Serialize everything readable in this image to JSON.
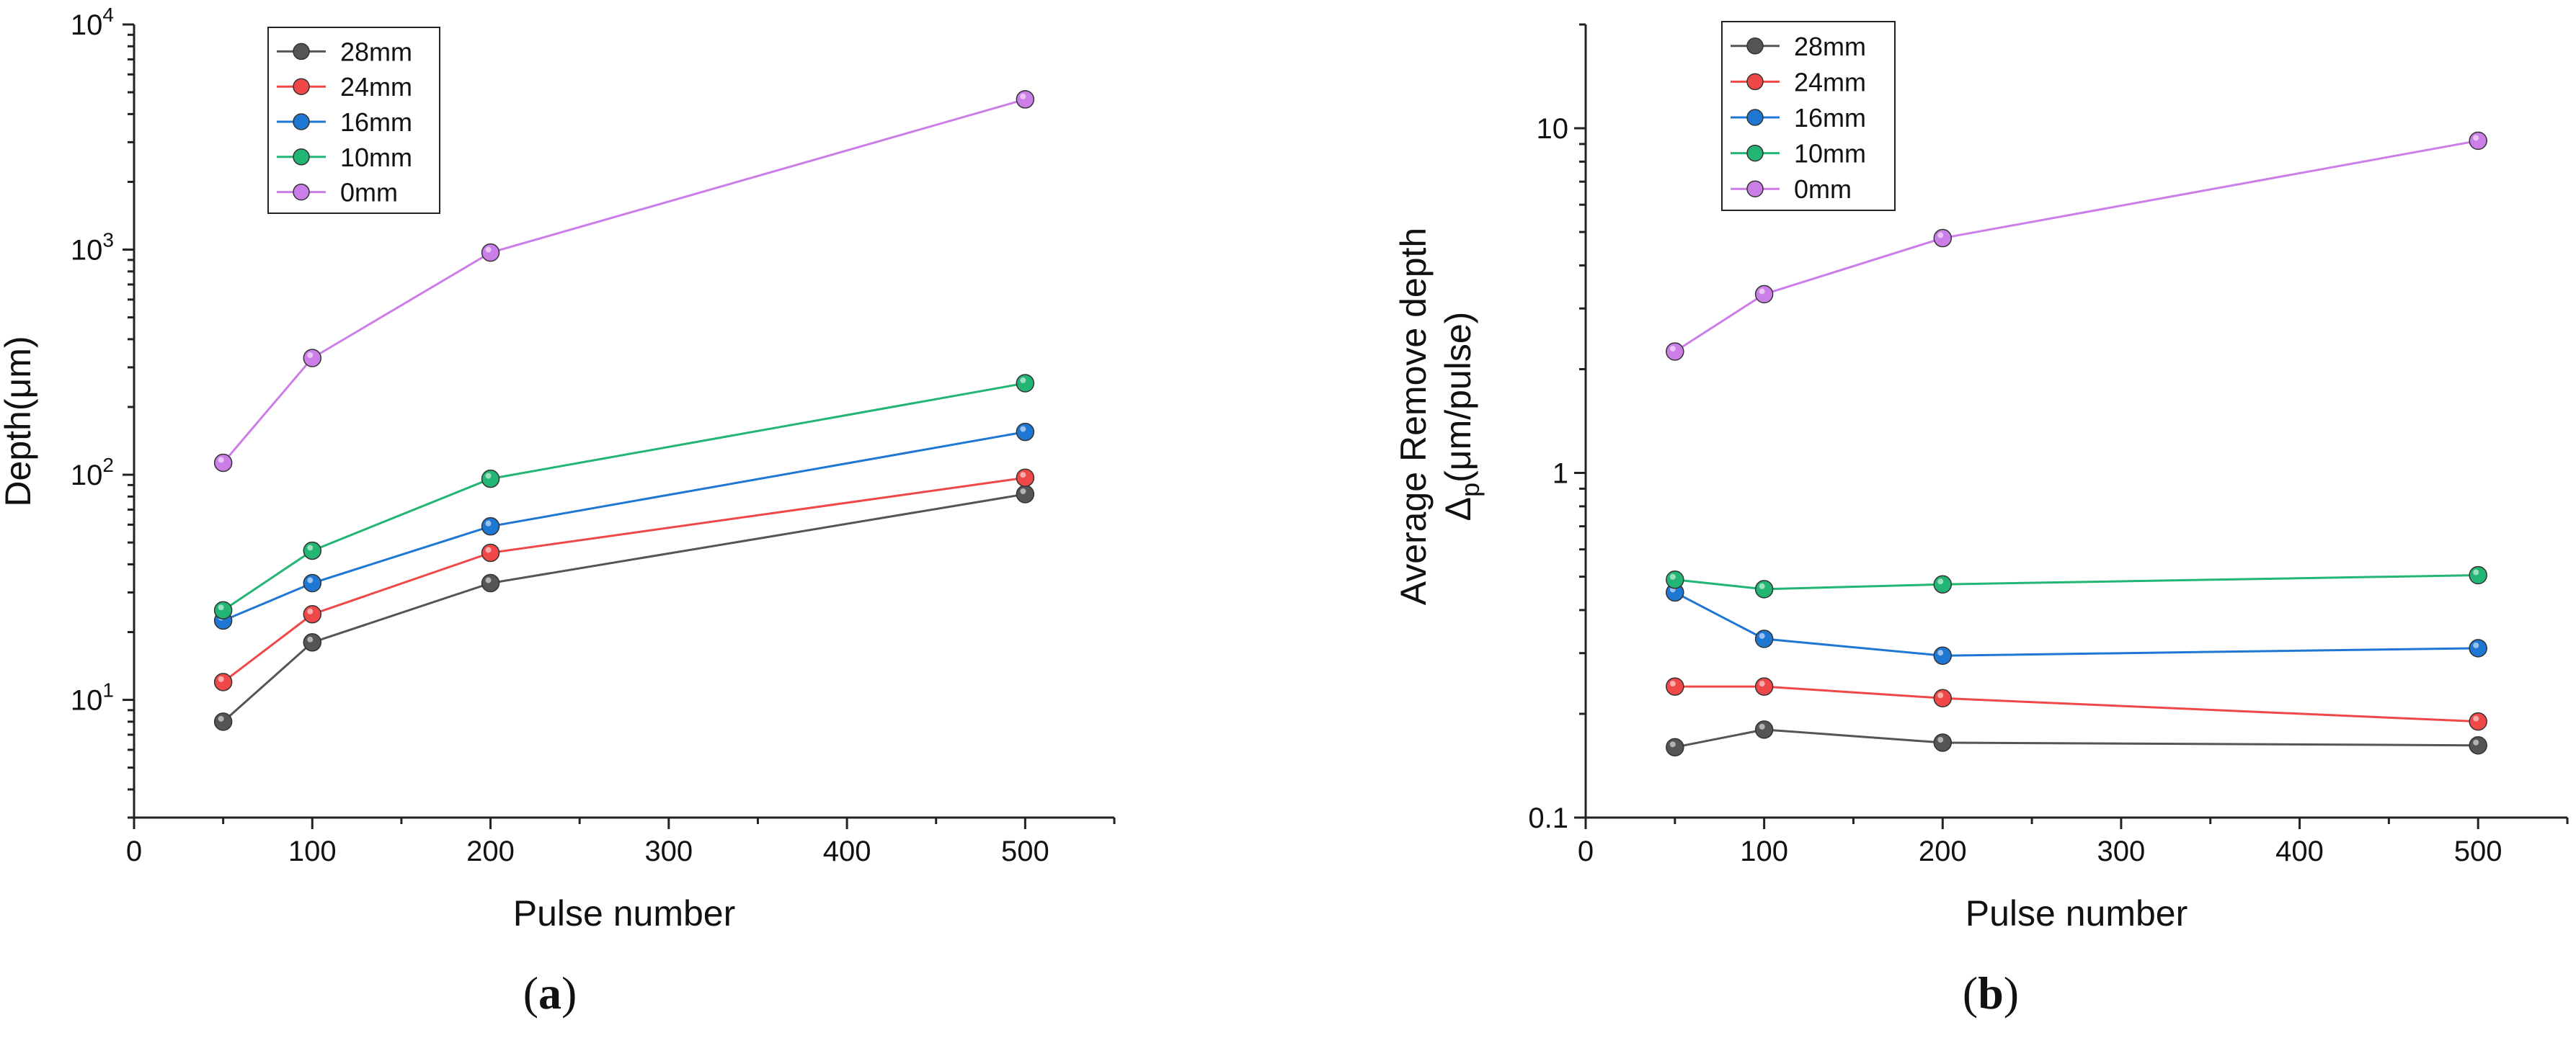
{
  "chart_data": [
    {
      "type": "line",
      "yscale": "log",
      "xlabel": "Pulse number",
      "ylabel": "Depth(μm)",
      "caption": {
        "open": "(",
        "letter": "a",
        "close": ")"
      },
      "xlim": [
        0,
        550
      ],
      "ylim": [
        3,
        10000
      ],
      "xticks": [
        "0",
        "100",
        "200",
        "300",
        "400",
        "500"
      ],
      "yticks": [
        {
          "value": 10,
          "base": "10",
          "exp": "1"
        },
        {
          "value": 100,
          "base": "10",
          "exp": "2"
        },
        {
          "value": 1000,
          "base": "10",
          "exp": "3"
        },
        {
          "value": 10000,
          "base": "10",
          "exp": "4"
        }
      ],
      "x": [
        50,
        100,
        200,
        500
      ],
      "series": [
        {
          "name": "28mm",
          "color": "#555555",
          "values": [
            8,
            18,
            33,
            82
          ]
        },
        {
          "name": "24mm",
          "color": "#f04848",
          "values": [
            12,
            24,
            45,
            97
          ]
        },
        {
          "name": "16mm",
          "color": "#1f77d4",
          "values": [
            22.5,
            33,
            59,
            155
          ]
        },
        {
          "name": "10mm",
          "color": "#22b573",
          "values": [
            25,
            46,
            96,
            255
          ]
        },
        {
          "name": "0mm",
          "color": "#cc7ee8",
          "values": [
            113,
            330,
            970,
            4650
          ]
        }
      ],
      "legend": "top-left"
    },
    {
      "type": "line",
      "yscale": "log",
      "xlabel": "Pulse number",
      "ylabel": "Average Remove depth",
      "ylabel2": {
        "pre": "Δ",
        "sub": "p",
        "post": "(μm/pulse)"
      },
      "caption": {
        "open": "(",
        "letter": "b",
        "close": ")"
      },
      "xlim": [
        0,
        550
      ],
      "ylim": [
        0.1,
        20
      ],
      "xticks": [
        "0",
        "100",
        "200",
        "300",
        "400",
        "500"
      ],
      "yticks": [
        {
          "value": 0.1,
          "label": "0.1"
        },
        {
          "value": 1,
          "label": "1"
        },
        {
          "value": 10,
          "label": "10"
        }
      ],
      "x": [
        50,
        100,
        200,
        500
      ],
      "series": [
        {
          "name": "28mm",
          "color": "#555555",
          "values": [
            0.16,
            0.18,
            0.165,
            0.162
          ]
        },
        {
          "name": "24mm",
          "color": "#f04848",
          "values": [
            0.24,
            0.24,
            0.222,
            0.19
          ]
        },
        {
          "name": "16mm",
          "color": "#1f77d4",
          "values": [
            0.45,
            0.33,
            0.295,
            0.31
          ]
        },
        {
          "name": "10mm",
          "color": "#22b573",
          "values": [
            0.49,
            0.46,
            0.475,
            0.505
          ]
        },
        {
          "name": "0mm",
          "color": "#cc7ee8",
          "values": [
            2.25,
            3.3,
            4.8,
            9.2
          ]
        }
      ],
      "legend": "top-left"
    }
  ]
}
